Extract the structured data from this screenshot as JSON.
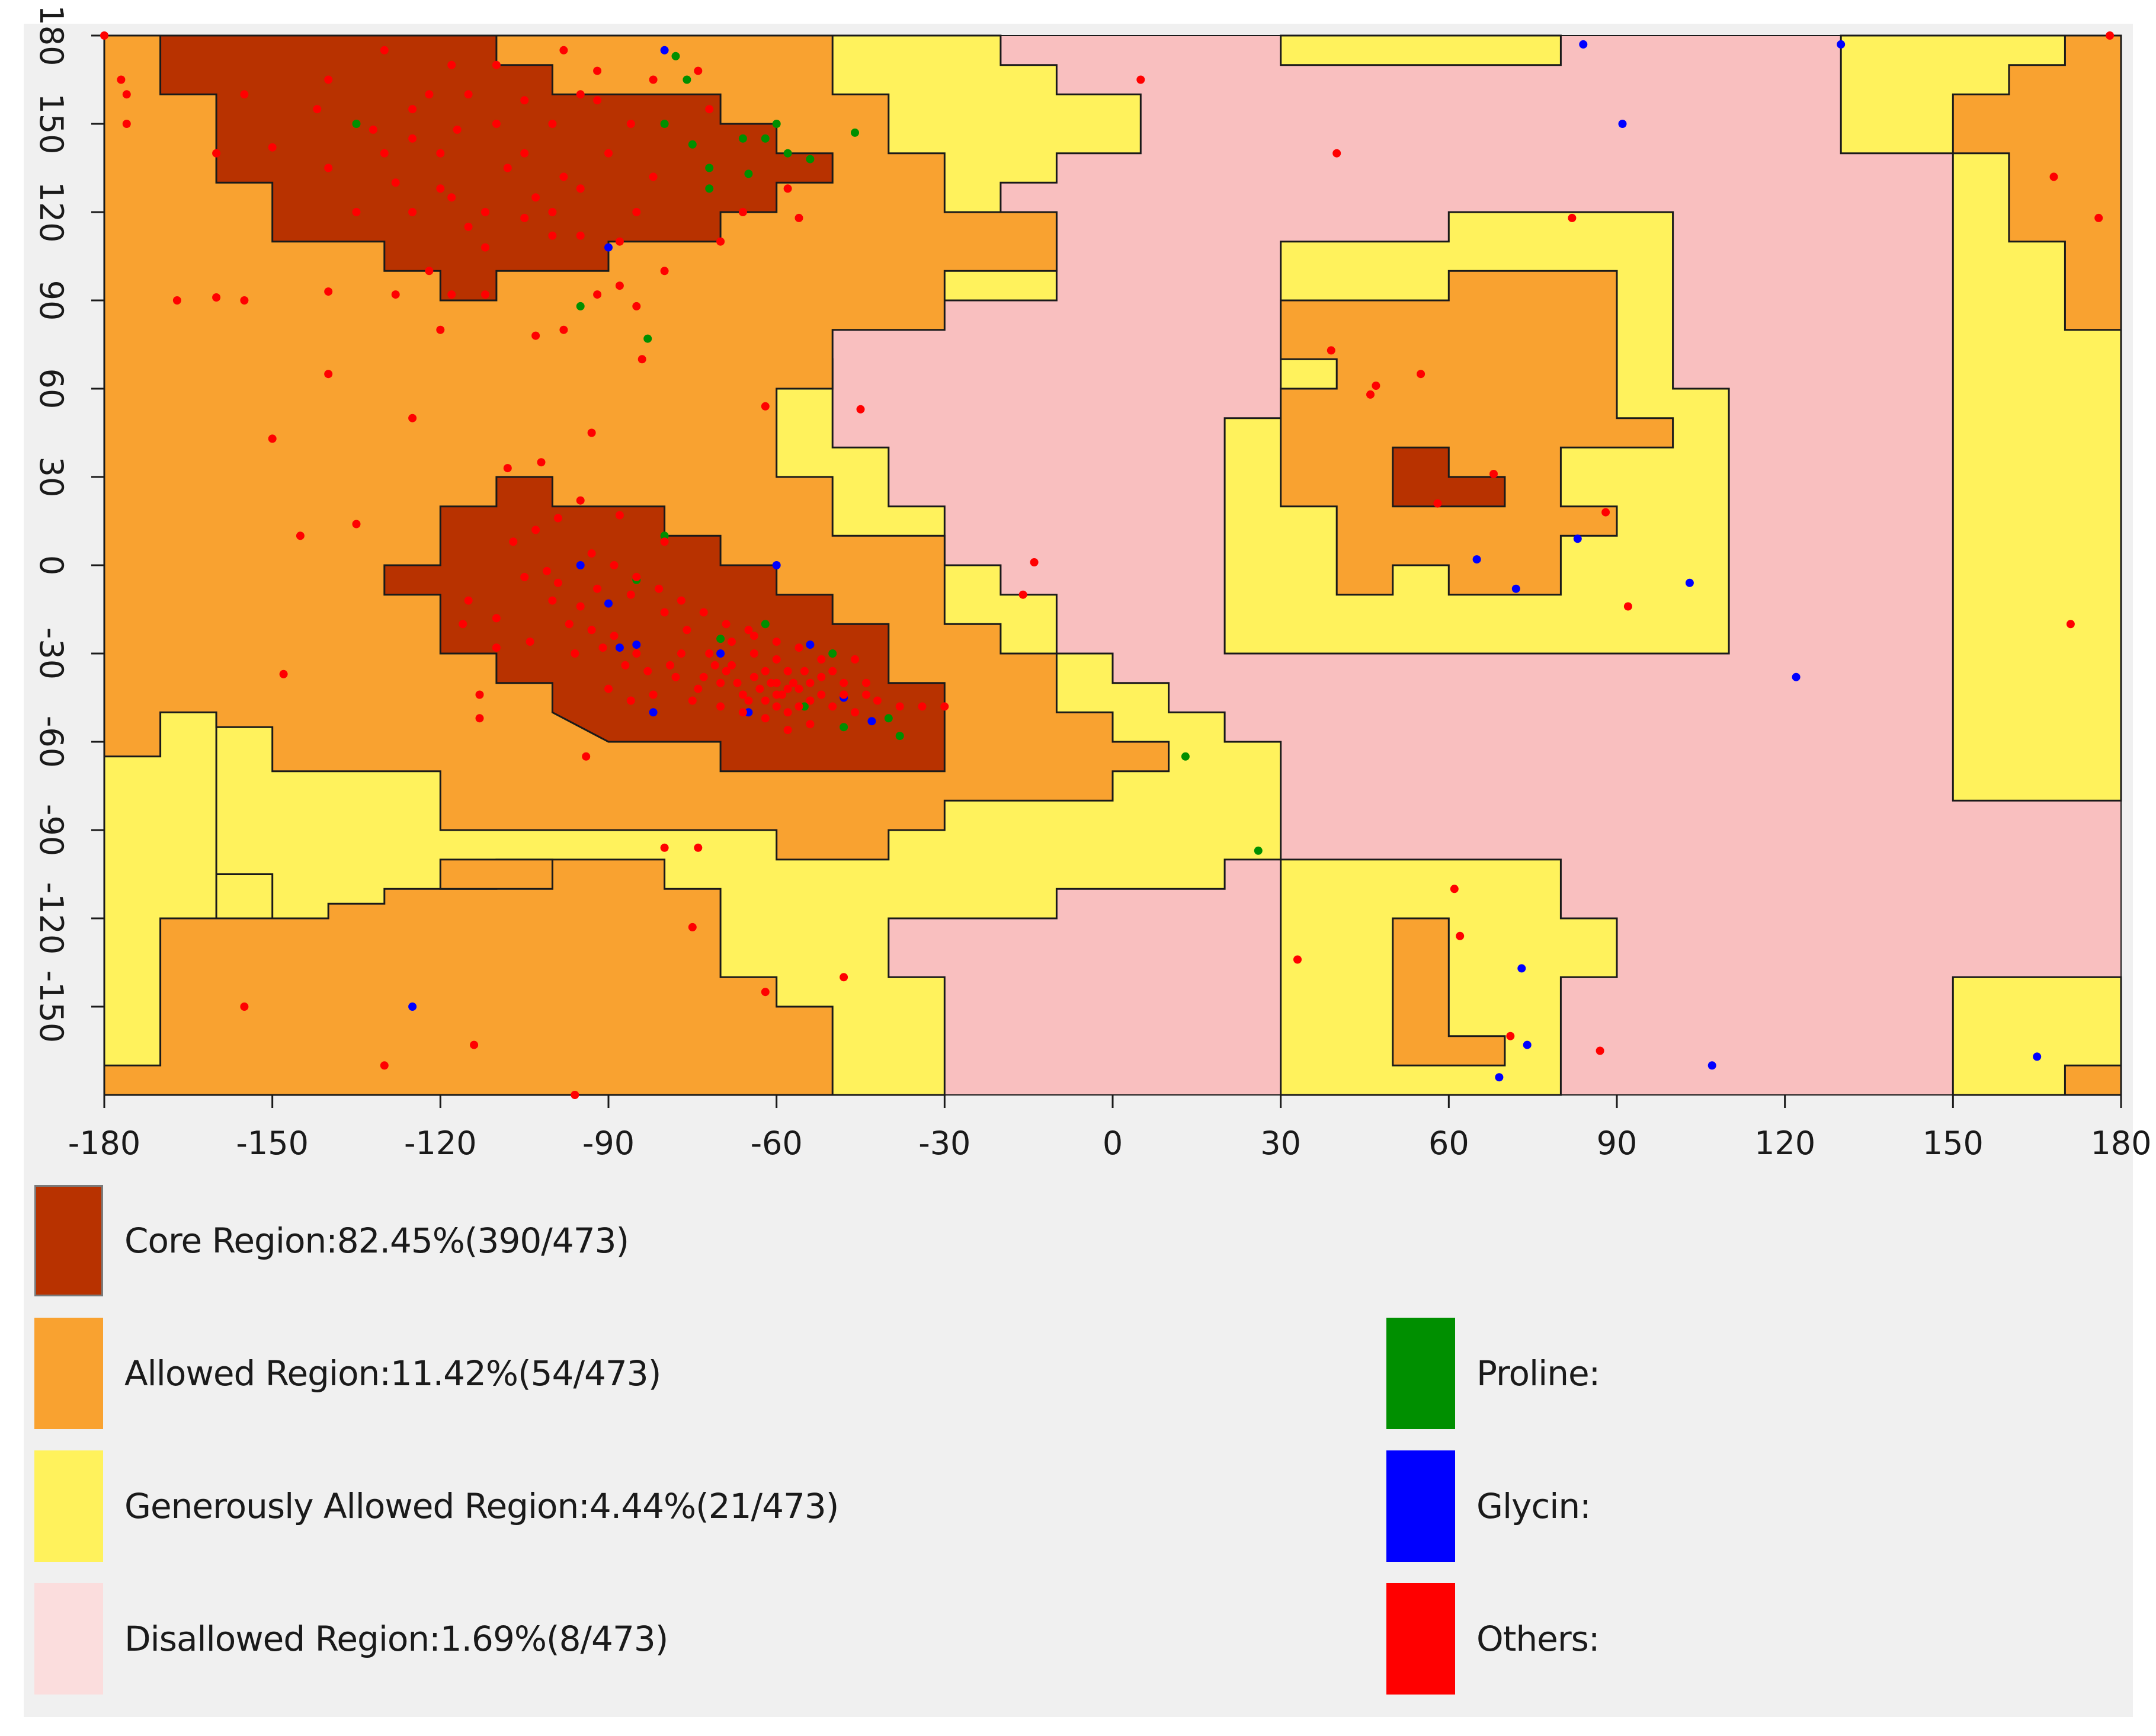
{
  "chart_data": {
    "type": "scatter",
    "title": "",
    "xlabel": "",
    "ylabel": "",
    "xlim": [
      -180,
      180
    ],
    "ylim": [
      -180,
      180
    ],
    "x_ticks": [
      "-180",
      "-150",
      "-120",
      "-90",
      "-60",
      "-30",
      "0",
      "30",
      "60",
      "90",
      "120",
      "150",
      "180"
    ],
    "y_ticks": [
      "180",
      "150",
      "120",
      "90",
      "60",
      "30",
      "0",
      "-30",
      "-60",
      "-90",
      "-120",
      "-150"
    ],
    "regions": [
      {
        "name": "Core Region",
        "label": "Core Region:82.45%(390/473)",
        "color": "#b83200",
        "percent": 82.45,
        "count": 390,
        "total": 473
      },
      {
        "name": "Allowed Region",
        "label": "Allowed Region:11.42%(54/473)",
        "color": "#f9a230",
        "percent": 11.42,
        "count": 54,
        "total": 473
      },
      {
        "name": "Generously Allowed Region",
        "label": "Generously Allowed Region:4.44%(21/473)",
        "color": "#fff25c",
        "percent": 4.44,
        "count": 21,
        "total": 473
      },
      {
        "name": "Disallowed Region",
        "label": "Disallowed Region:1.69%(8/473)",
        "color": "#fbdddd",
        "percent": 1.69,
        "count": 8,
        "total": 473
      }
    ],
    "residue_types": [
      {
        "name": "Proline",
        "label": "Proline:",
        "color": "#008f00"
      },
      {
        "name": "Glycin",
        "label": "Glycin:",
        "color": "#0000ff"
      },
      {
        "name": "Others",
        "label": "Others:",
        "color": "#ff0000"
      }
    ],
    "plot_background": "#f9bfbf",
    "series": [
      {
        "name": "Proline",
        "color": "#008f00",
        "points": [
          [
            -78,
            173
          ],
          [
            -76,
            165
          ],
          [
            -80,
            150
          ],
          [
            -60,
            150
          ],
          [
            -46,
            147
          ],
          [
            -66,
            145
          ],
          [
            -62,
            145
          ],
          [
            -58,
            140
          ],
          [
            -54,
            138
          ],
          [
            -72,
            135
          ],
          [
            -65,
            133
          ],
          [
            -72,
            128
          ],
          [
            -75,
            143
          ],
          [
            -135,
            150
          ],
          [
            -95,
            88
          ],
          [
            -83,
            77
          ],
          [
            -80,
            10
          ],
          [
            -85,
            -5
          ],
          [
            -70,
            -25
          ],
          [
            -62,
            -20
          ],
          [
            -50,
            -30
          ],
          [
            -48,
            -55
          ],
          [
            -55,
            -48
          ],
          [
            -40,
            -52
          ],
          [
            -38,
            -58
          ],
          [
            13,
            -65
          ],
          [
            26,
            -97
          ]
        ]
      },
      {
        "name": "Glycin",
        "color": "#0000ff",
        "points": [
          [
            -80,
            175
          ],
          [
            -90,
            108
          ],
          [
            -95,
            0
          ],
          [
            -90,
            -13
          ],
          [
            -85,
            -27
          ],
          [
            -88,
            -28
          ],
          [
            -60,
            0
          ],
          [
            -54,
            -27
          ],
          [
            -65,
            -50
          ],
          [
            -48,
            -45
          ],
          [
            -43,
            -53
          ],
          [
            -70,
            -30
          ],
          [
            -82,
            -50
          ],
          [
            -125,
            -150
          ],
          [
            84,
            177
          ],
          [
            130,
            177
          ],
          [
            91,
            150
          ],
          [
            83,
            9
          ],
          [
            65,
            2
          ],
          [
            72,
            -8
          ],
          [
            103,
            -6
          ],
          [
            122,
            -38
          ],
          [
            73,
            -137
          ],
          [
            74,
            -163
          ],
          [
            107,
            -170
          ],
          [
            69,
            -174
          ],
          [
            165,
            -167
          ]
        ]
      },
      {
        "name": "Others",
        "color": "#ff0000",
        "points": [
          [
            -176,
            160
          ],
          [
            -176,
            150
          ],
          [
            -160,
            140
          ],
          [
            -150,
            142
          ],
          [
            -140,
            135
          ],
          [
            -130,
            140
          ],
          [
            -125,
            120
          ],
          [
            -120,
            140
          ],
          [
            -115,
            160
          ],
          [
            -110,
            150
          ],
          [
            -105,
            140
          ],
          [
            -100,
            150
          ],
          [
            -95,
            160
          ],
          [
            -90,
            140
          ],
          [
            -85,
            120
          ],
          [
            -115,
            115
          ],
          [
            -105,
            118
          ],
          [
            -95,
            128
          ],
          [
            -128,
            130
          ],
          [
            -118,
            125
          ],
          [
            -112,
            108
          ],
          [
            -120,
            128
          ],
          [
            -108,
            135
          ],
          [
            -100,
            112
          ],
          [
            -92,
            158
          ],
          [
            -88,
            110
          ],
          [
            -132,
            148
          ],
          [
            -125,
            155
          ],
          [
            -110,
            170
          ],
          [
            -98,
            175
          ],
          [
            -86,
            150
          ],
          [
            -82,
            132
          ],
          [
            -98,
            132
          ],
          [
            -103,
            125
          ],
          [
            -125,
            145
          ],
          [
            -135,
            120
          ],
          [
            -140,
            165
          ],
          [
            -155,
            160
          ],
          [
            -142,
            155
          ],
          [
            -122,
            160
          ],
          [
            -117,
            148
          ],
          [
            -105,
            158
          ],
          [
            -130,
            175
          ],
          [
            -118,
            170
          ],
          [
            -92,
            168
          ],
          [
            -82,
            165
          ],
          [
            -74,
            168
          ],
          [
            -72,
            155
          ],
          [
            -66,
            120
          ],
          [
            -58,
            128
          ],
          [
            -56,
            118
          ],
          [
            -70,
            110
          ],
          [
            -95,
            112
          ],
          [
            -100,
            120
          ],
          [
            -112,
            120
          ],
          [
            -122,
            100
          ],
          [
            -88,
            95
          ],
          [
            -80,
            100
          ],
          [
            -85,
            88
          ],
          [
            -92,
            92
          ],
          [
            -112,
            92
          ],
          [
            -118,
            92
          ],
          [
            -128,
            92
          ],
          [
            -140,
            93
          ],
          [
            -155,
            90
          ],
          [
            -160,
            91
          ],
          [
            -167,
            90
          ],
          [
            -98,
            80
          ],
          [
            -103,
            78
          ],
          [
            -120,
            80
          ],
          [
            -84,
            70
          ],
          [
            -125,
            50
          ],
          [
            -140,
            65
          ],
          [
            -150,
            43
          ],
          [
            -93,
            45
          ],
          [
            -145,
            10
          ],
          [
            -135,
            14
          ],
          [
            -108,
            33
          ],
          [
            -102,
            35
          ],
          [
            -95,
            22
          ],
          [
            -88,
            17
          ],
          [
            -80,
            8
          ],
          [
            -115,
            -12
          ],
          [
            -110,
            -18
          ],
          [
            -100,
            -12
          ],
          [
            -92,
            -8
          ],
          [
            -86,
            -10
          ],
          [
            -80,
            -16
          ],
          [
            -76,
            -22
          ],
          [
            -72,
            -30
          ],
          [
            -68,
            -34
          ],
          [
            -64,
            -38
          ],
          [
            -60,
            -40
          ],
          [
            -56,
            -42
          ],
          [
            -52,
            -38
          ],
          [
            -48,
            -44
          ],
          [
            -44,
            -40
          ],
          [
            -66,
            -44
          ],
          [
            -62,
            -46
          ],
          [
            -58,
            -50
          ],
          [
            -54,
            -46
          ],
          [
            -70,
            -40
          ],
          [
            -74,
            -42
          ],
          [
            -78,
            -38
          ],
          [
            -82,
            -44
          ],
          [
            -86,
            -46
          ],
          [
            -90,
            -42
          ],
          [
            -96,
            -30
          ],
          [
            -104,
            -26
          ],
          [
            -110,
            -28
          ],
          [
            -62,
            -36
          ],
          [
            -60,
            -32
          ],
          [
            -58,
            -36
          ],
          [
            -56,
            -28
          ],
          [
            -64,
            -30
          ],
          [
            -68,
            -26
          ],
          [
            -64,
            -24
          ],
          [
            -60,
            -26
          ],
          [
            -52,
            -32
          ],
          [
            -50,
            -36
          ],
          [
            -46,
            -32
          ],
          [
            -42,
            -46
          ],
          [
            -38,
            -48
          ],
          [
            -34,
            -48
          ],
          [
            -30,
            -48
          ],
          [
            -66,
            -50
          ],
          [
            -70,
            -48
          ],
          [
            -58,
            -56
          ],
          [
            -54,
            -54
          ],
          [
            -62,
            -52
          ],
          [
            -60,
            -48
          ],
          [
            -59,
            -44
          ],
          [
            -57,
            -40
          ],
          [
            -55,
            -36
          ],
          [
            -63,
            -42
          ],
          [
            -65,
            -46
          ],
          [
            -67,
            -40
          ],
          [
            -69,
            -36
          ],
          [
            -71,
            -34
          ],
          [
            -73,
            -38
          ],
          [
            -61,
            -40
          ],
          [
            -60,
            -44
          ],
          [
            -58,
            -42
          ],
          [
            -56,
            -48
          ],
          [
            -54,
            -40
          ],
          [
            -52,
            -44
          ],
          [
            -50,
            -48
          ],
          [
            -48,
            -40
          ],
          [
            -46,
            -50
          ],
          [
            -44,
            -44
          ],
          [
            -75,
            -46
          ],
          [
            -77,
            -30
          ],
          [
            -79,
            -34
          ],
          [
            -83,
            -36
          ],
          [
            -85,
            -30
          ],
          [
            -87,
            -34
          ],
          [
            -91,
            -28
          ],
          [
            -93,
            -22
          ],
          [
            -89,
            -24
          ],
          [
            -95,
            -14
          ],
          [
            -97,
            -20
          ],
          [
            -99,
            -6
          ],
          [
            -101,
            -2
          ],
          [
            -105,
            -4
          ],
          [
            -107,
            8
          ],
          [
            -103,
            12
          ],
          [
            -99,
            16
          ],
          [
            -93,
            4
          ],
          [
            -89,
            0
          ],
          [
            -85,
            -4
          ],
          [
            -81,
            -8
          ],
          [
            -77,
            -12
          ],
          [
            -73,
            -16
          ],
          [
            -69,
            -20
          ],
          [
            -65,
            -22
          ],
          [
            -113,
            -44
          ],
          [
            -113,
            -52
          ],
          [
            -116,
            -20
          ],
          [
            -148,
            -37
          ],
          [
            -94,
            -65
          ],
          [
            -80,
            -96
          ],
          [
            -74,
            -96
          ],
          [
            -75,
            -123
          ],
          [
            -62,
            -145
          ],
          [
            -48,
            -140
          ],
          [
            -155,
            -150
          ],
          [
            -130,
            -170
          ],
          [
            -114,
            -163
          ],
          [
            -96,
            -180
          ],
          [
            -180,
            180
          ],
          [
            -177,
            165
          ],
          [
            5,
            165
          ],
          [
            40,
            140
          ],
          [
            82,
            118
          ],
          [
            39,
            73
          ],
          [
            47,
            61
          ],
          [
            46,
            58
          ],
          [
            55,
            65
          ],
          [
            -45,
            53
          ],
          [
            -62,
            54
          ],
          [
            -14,
            1
          ],
          [
            -16,
            -10
          ],
          [
            58,
            21
          ],
          [
            68,
            31
          ],
          [
            88,
            18
          ],
          [
            92,
            -14
          ],
          [
            171,
            -20
          ],
          [
            168,
            132
          ],
          [
            176,
            118
          ],
          [
            178,
            180
          ],
          [
            61,
            -110
          ],
          [
            62,
            -126
          ],
          [
            33,
            -134
          ],
          [
            71,
            -160
          ],
          [
            87,
            -165
          ]
        ]
      }
    ]
  }
}
